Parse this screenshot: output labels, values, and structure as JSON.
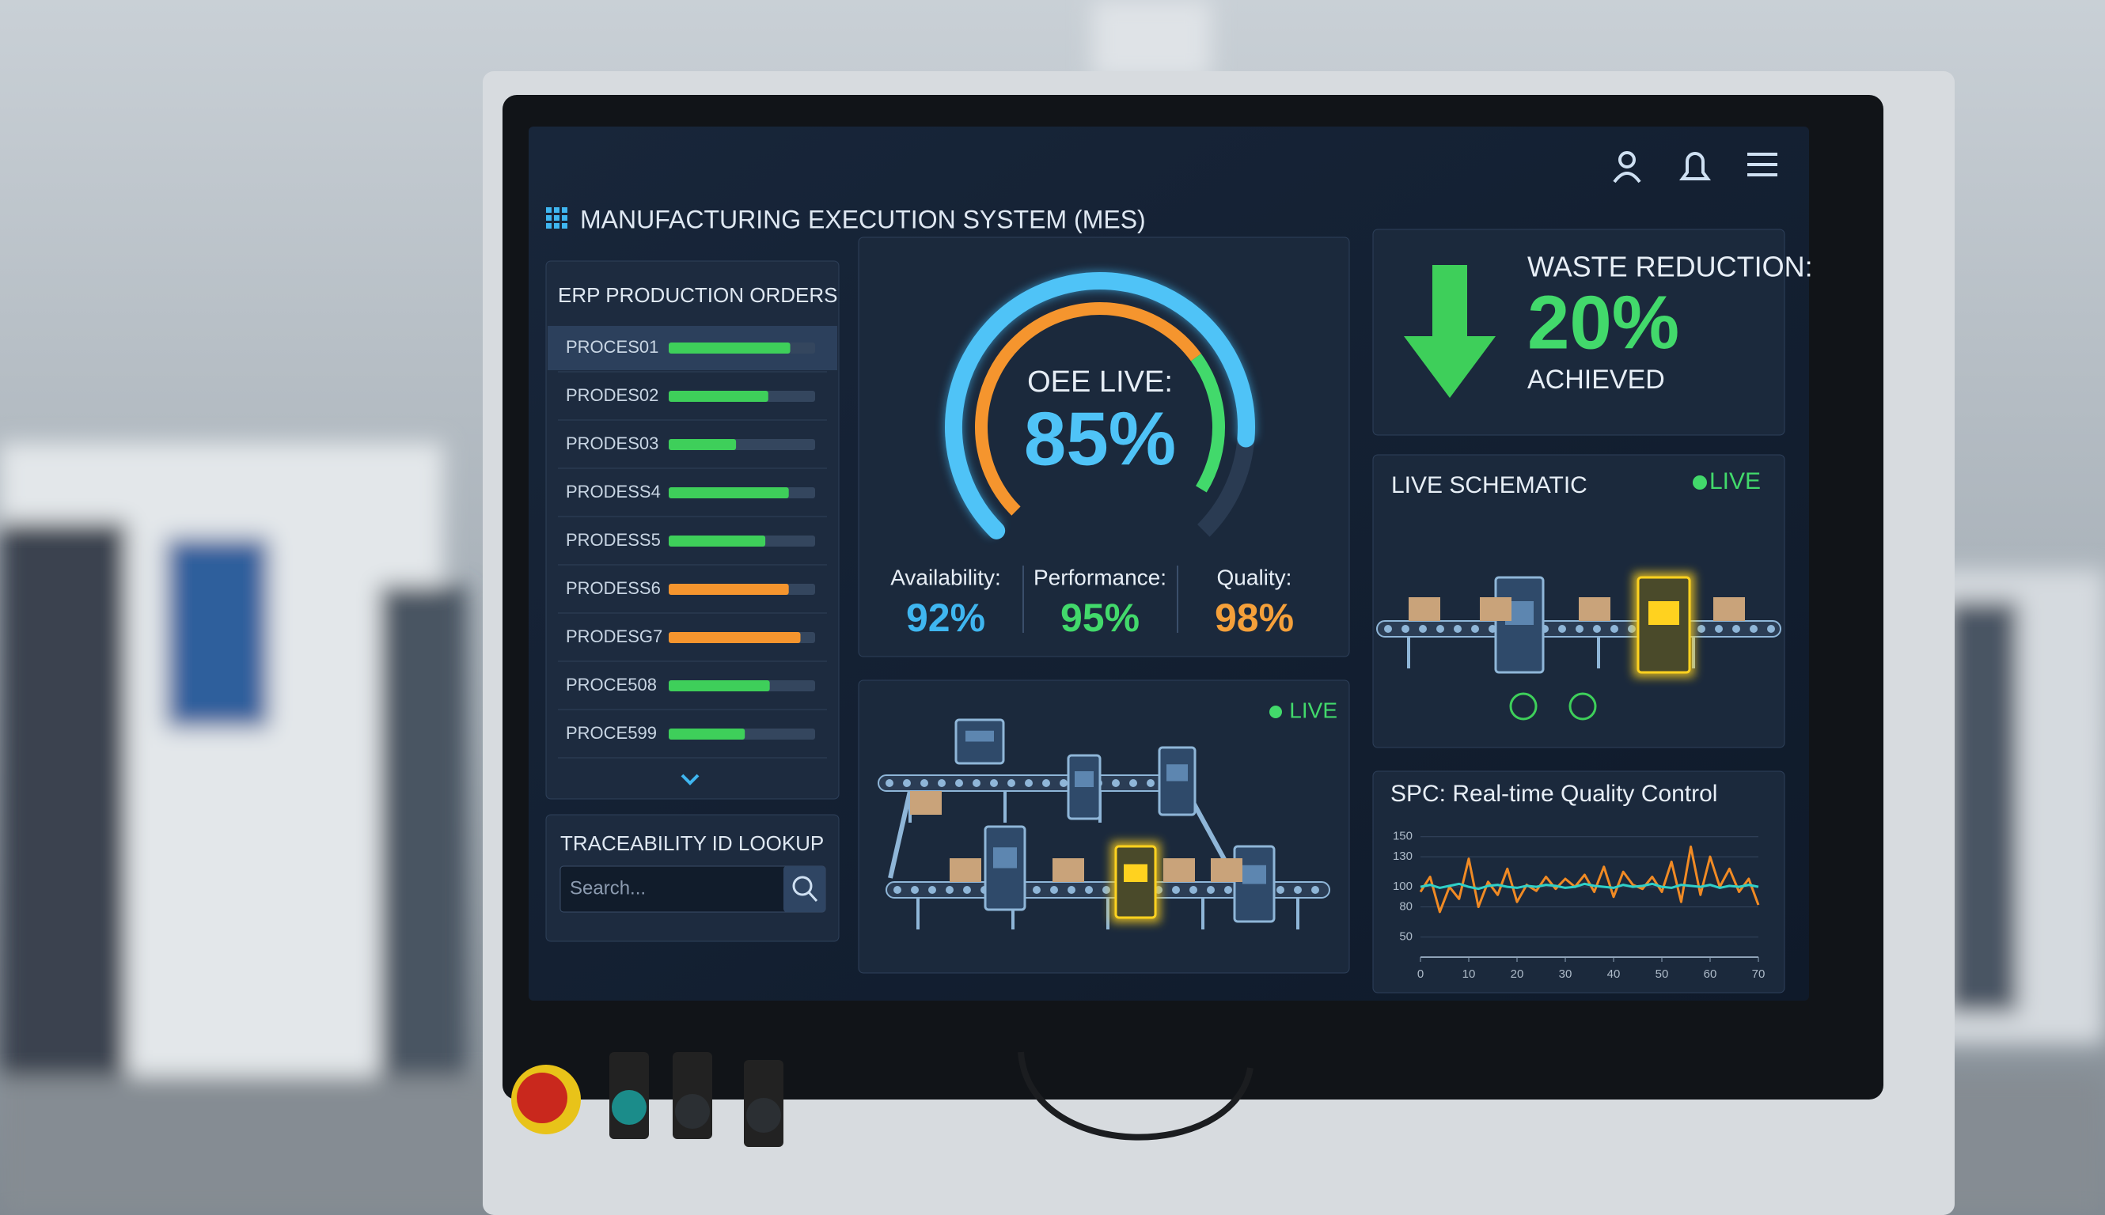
{
  "header": {
    "title": "MANUFACTURING EXECUTION SYSTEM (MES)"
  },
  "orders": {
    "title": "ERP PRODUCTION ORDERS",
    "items": [
      {
        "name": "PROCES01",
        "progress": 83,
        "color": "#3ecf5a"
      },
      {
        "name": "PRODES02",
        "progress": 68,
        "color": "#3ecf5a"
      },
      {
        "name": "PRODES03",
        "progress": 46,
        "color": "#3ecf5a"
      },
      {
        "name": "PRODESS4",
        "progress": 82,
        "color": "#3ecf5a"
      },
      {
        "name": "PRODESS5",
        "progress": 66,
        "color": "#3ecf5a"
      },
      {
        "name": "PRODESS6",
        "progress": 82,
        "color": "#f5952e"
      },
      {
        "name": "PRODESG7",
        "progress": 90,
        "color": "#f5952e"
      },
      {
        "name": "PROCE508",
        "progress": 69,
        "color": "#3ecf5a"
      },
      {
        "name": "PROCE599",
        "progress": 52,
        "color": "#3ecf5a"
      }
    ]
  },
  "traceability": {
    "title": "TRACEABILITY ID LOOKUP",
    "placeholder": "Search..."
  },
  "oee": {
    "label": "OEE LIVE:",
    "value": 85,
    "value_label": "85%",
    "metrics": [
      {
        "label": "Availability:",
        "value": "92%",
        "color": "#3fb6f0"
      },
      {
        "label": "Performance:",
        "value": "95%",
        "color": "#42d96b"
      },
      {
        "label": "Quality:",
        "value": "98%",
        "color": "#f5a03a"
      }
    ]
  },
  "line_view": {
    "status": "LIVE"
  },
  "waste": {
    "title": "WASTE REDUCTION:",
    "value": "20%",
    "note": "ACHIEVED"
  },
  "schematic": {
    "title": "LIVE SCHEMATIC",
    "status": "LIVE"
  },
  "spc": {
    "title": "SPC: Real-time Quality Control",
    "chart_data": {
      "type": "line",
      "x": [
        0,
        2,
        4,
        6,
        8,
        10,
        12,
        14,
        16,
        18,
        20,
        22,
        24,
        26,
        28,
        30,
        32,
        34,
        36,
        38,
        40,
        42,
        44,
        46,
        48,
        50,
        52,
        54,
        56,
        58,
        60,
        62,
        64,
        66,
        68,
        70
      ],
      "series": [
        {
          "color": "#f08a24",
          "values": [
            95,
            110,
            75,
            100,
            88,
            128,
            80,
            105,
            92,
            118,
            85,
            102,
            96,
            110,
            98,
            108,
            100,
            112,
            95,
            120,
            90,
            115,
            102,
            98,
            110,
            95,
            125,
            85,
            140,
            92,
            130,
            100,
            118,
            95,
            108,
            82
          ]
        },
        {
          "color": "#2fd0c8",
          "values": [
            100,
            102,
            99,
            101,
            103,
            100,
            98,
            101,
            102,
            100,
            99,
            101,
            100,
            102,
            101,
            99,
            100,
            103,
            101,
            100,
            99,
            102,
            100,
            101,
            103,
            100,
            99,
            102,
            101,
            100,
            102,
            99,
            101,
            100,
            102,
            100
          ]
        }
      ],
      "xlim": [
        0,
        70
      ],
      "xticks": [
        0,
        10,
        20,
        30,
        40,
        50,
        60,
        70
      ],
      "ylim": [
        30,
        160
      ],
      "yticks": [
        50,
        80,
        100,
        130,
        150
      ],
      "grid": true
    }
  }
}
